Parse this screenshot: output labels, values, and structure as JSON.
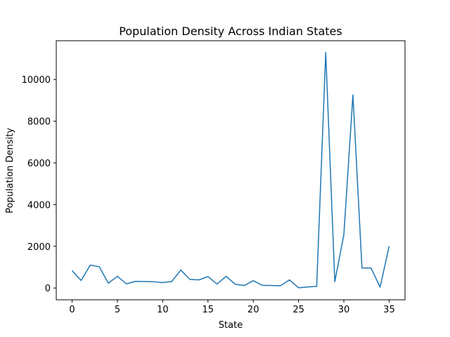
{
  "chart_data": {
    "type": "line",
    "title": "Population Density Across Indian States",
    "xlabel": "State",
    "ylabel": "Population Density",
    "xlim": [
      -1.75,
      36.75
    ],
    "ylim": [
      -565,
      11860
    ],
    "xticks": [
      0,
      5,
      10,
      15,
      20,
      25,
      30,
      35
    ],
    "yticks": [
      0,
      2000,
      4000,
      6000,
      8000,
      10000
    ],
    "grid": false,
    "series": [
      {
        "color": "#1f77b4",
        "x": [
          0,
          1,
          2,
          3,
          4,
          5,
          6,
          7,
          8,
          9,
          10,
          11,
          12,
          13,
          14,
          15,
          16,
          17,
          18,
          19,
          20,
          21,
          22,
          23,
          24,
          25,
          26,
          27,
          28,
          29,
          30,
          31,
          32,
          33,
          34,
          35
        ],
        "y": [
          830,
          360,
          1100,
          1020,
          230,
          560,
          200,
          320,
          310,
          300,
          260,
          310,
          860,
          410,
          390,
          550,
          190,
          560,
          180,
          120,
          350,
          130,
          120,
          110,
          390,
          10,
          50,
          80,
          11300,
          300,
          2560,
          9260,
          960,
          960,
          40,
          2010
        ]
      }
    ]
  }
}
